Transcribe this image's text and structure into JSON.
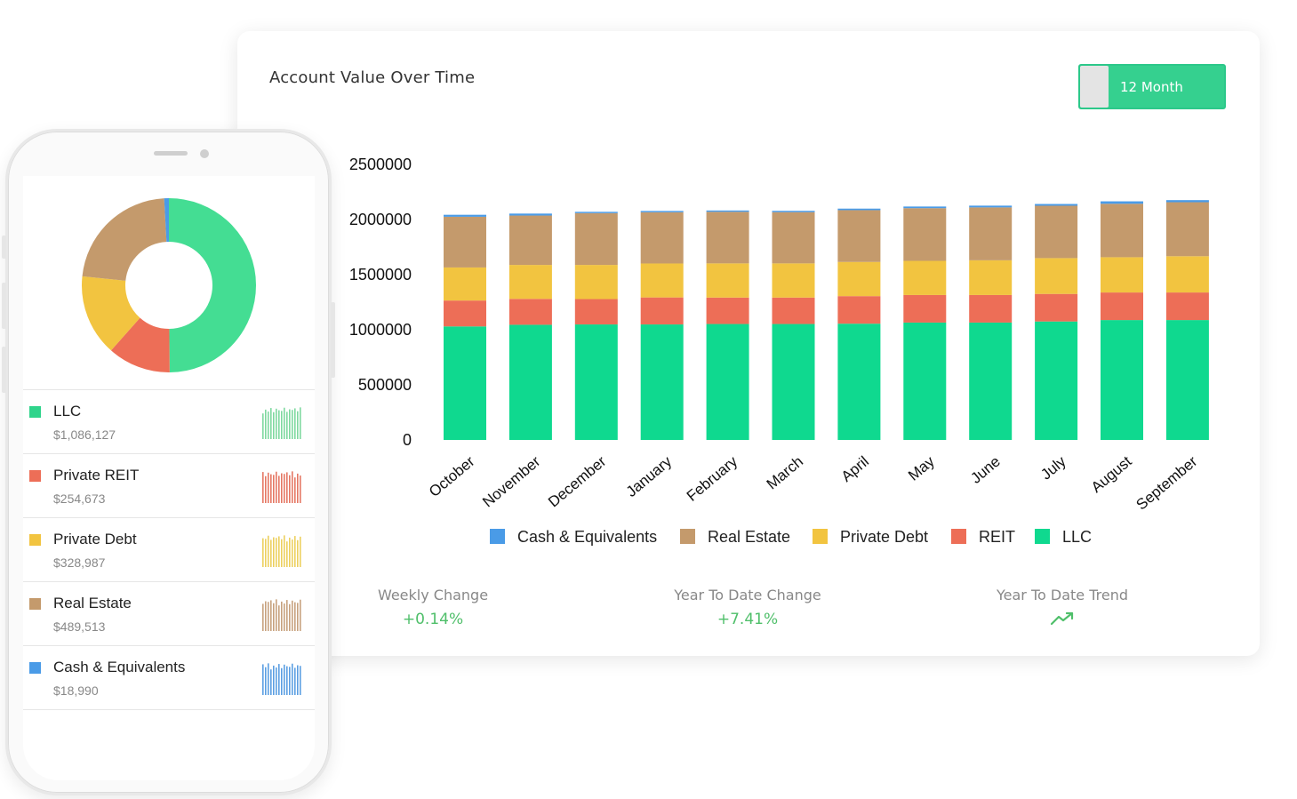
{
  "header": {
    "title": "Account Value Over Time",
    "range_toggle": "12 Month"
  },
  "chart_data": {
    "type": "bar",
    "stacked": true,
    "categories": [
      "October",
      "November",
      "December",
      "January",
      "February",
      "March",
      "April",
      "May",
      "June",
      "July",
      "August",
      "September"
    ],
    "series": [
      {
        "name": "LLC",
        "color": "#0fd98f",
        "values": [
          1030000,
          1045000,
          1048000,
          1048000,
          1052000,
          1052000,
          1055000,
          1065000,
          1065000,
          1075000,
          1088000,
          1088000
        ]
      },
      {
        "name": "REIT",
        "color": "#ed6e57",
        "values": [
          235000,
          235000,
          230000,
          245000,
          240000,
          240000,
          250000,
          250000,
          250000,
          250000,
          250000,
          250000
        ]
      },
      {
        "name": "Private Debt",
        "color": "#f2c440",
        "values": [
          300000,
          308000,
          310000,
          308000,
          310000,
          310000,
          310000,
          310000,
          315000,
          325000,
          320000,
          329000
        ]
      },
      {
        "name": "Real Estate",
        "color": "#c49a6c",
        "values": [
          460000,
          448000,
          470000,
          465000,
          468000,
          465000,
          470000,
          478000,
          480000,
          475000,
          485000,
          490000
        ]
      },
      {
        "name": "Cash & Equivalents",
        "color": "#4a9be7",
        "values": [
          18000,
          18000,
          12000,
          12000,
          12000,
          12000,
          14000,
          15000,
          16000,
          16000,
          22000,
          19000
        ]
      }
    ],
    "legend_order": [
      "Cash & Equivalents",
      "Real Estate",
      "Private Debt",
      "REIT",
      "LLC"
    ],
    "y_ticks": [
      "0",
      "500000",
      "1000000",
      "1500000",
      "2000000",
      "2500000"
    ],
    "ylim": [
      0,
      2500000
    ],
    "legend_position": "bottom",
    "grid": false
  },
  "stats": [
    {
      "label": "Weekly Change",
      "value": "+0.14%"
    },
    {
      "label": "Year To Date Change",
      "value": "+7.41%"
    },
    {
      "label": "Year To Date Trend",
      "value_icon": "trending-up-icon"
    }
  ],
  "phone": {
    "donut": [
      {
        "name": "LLC",
        "value": 1086127,
        "color": "#44dd93"
      },
      {
        "name": "Private REIT",
        "value": 254673,
        "color": "#ed6e57"
      },
      {
        "name": "Private Debt",
        "value": 328987,
        "color": "#f2c440"
      },
      {
        "name": "Real Estate",
        "value": 489513,
        "color": "#c49a6c"
      },
      {
        "name": "Cash & Equivalents",
        "value": 18990,
        "color": "#4a9be7"
      }
    ],
    "accounts": [
      {
        "name": "LLC",
        "amount": "$1,086,127",
        "color": "#2fd48b",
        "spark_color": "#7fd9a0"
      },
      {
        "name": "Private REIT",
        "amount": "$254,673",
        "color": "#ed6e57",
        "spark_color": "#e57865"
      },
      {
        "name": "Private Debt",
        "amount": "$328,987",
        "color": "#f2c440",
        "spark_color": "#ecd05f"
      },
      {
        "name": "Real Estate",
        "amount": "$489,513",
        "color": "#c49a6c",
        "spark_color": "#c7a27e"
      },
      {
        "name": "Cash & Equivalents",
        "amount": "$18,990",
        "color": "#4a9be7",
        "spark_color": "#5c9fe2"
      }
    ]
  }
}
